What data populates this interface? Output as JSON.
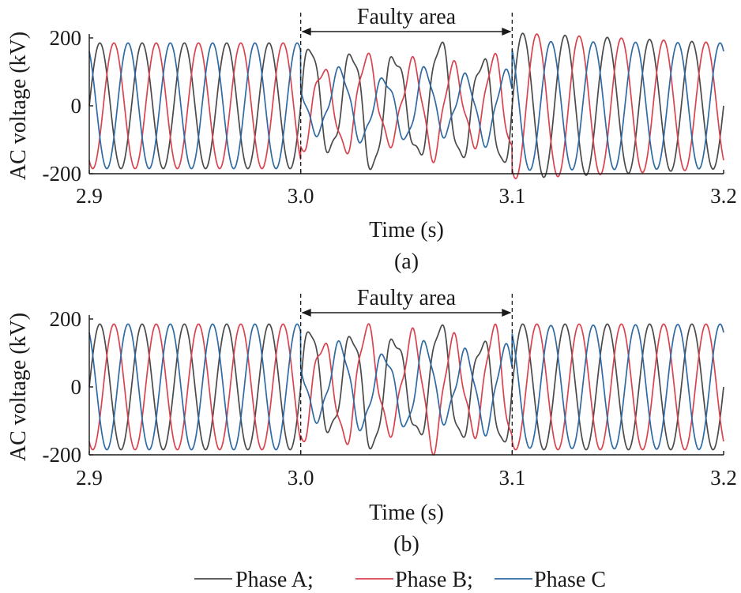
{
  "colors": {
    "phase_a": "#4a4a4a",
    "phase_b": "#d9434f",
    "phase_c": "#2f6aa3",
    "axis": "#1a1a1a"
  },
  "chart_data": [
    {
      "panel": "(a)",
      "type": "line",
      "xlabel": "Time (s)",
      "ylabel": "AC voltage (kV)",
      "xlim": [
        2.9,
        3.2
      ],
      "ylim": [
        -200,
        200
      ],
      "xticks": [
        "2.9",
        "3.0",
        "3.1",
        "3.2"
      ],
      "yticks": [
        "200",
        "0",
        "-200"
      ],
      "annotation": {
        "label": "Faulty area",
        "x_start": 3.0,
        "x_end": 3.1
      },
      "waveform": {
        "frequency_hz": 50,
        "pre_fault_amplitude": 185,
        "fault_amplitudes": {
          "Phase A": 190,
          "Phase B": 150,
          "Phase C": 110
        },
        "post_fault_amplitudes": {
          "Phase A": 215,
          "Phase B": 215,
          "Phase C": 190
        }
      },
      "series": [
        {
          "name": "Phase A",
          "phase_deg": 0
        },
        {
          "name": "Phase B",
          "phase_deg": -120
        },
        {
          "name": "Phase C",
          "phase_deg": 120
        }
      ]
    },
    {
      "panel": "(b)",
      "type": "line",
      "xlabel": "Time (s)",
      "ylabel": "AC voltage (kV)",
      "xlim": [
        2.9,
        3.2
      ],
      "ylim": [
        -200,
        200
      ],
      "xticks": [
        "2.9",
        "3.0",
        "3.1",
        "3.2"
      ],
      "yticks": [
        "200",
        "0",
        "-200"
      ],
      "annotation": {
        "label": "Faulty area",
        "x_start": 3.0,
        "x_end": 3.1
      },
      "waveform": {
        "frequency_hz": 50,
        "pre_fault_amplitude": 185,
        "fault_amplitudes": {
          "Phase A": 185,
          "Phase B": 180,
          "Phase C": 130
        },
        "post_fault_amplitudes": {
          "Phase A": 185,
          "Phase B": 185,
          "Phase C": 180
        }
      },
      "series": [
        {
          "name": "Phase A",
          "phase_deg": 0
        },
        {
          "name": "Phase B",
          "phase_deg": -120
        },
        {
          "name": "Phase C",
          "phase_deg": 120
        }
      ]
    }
  ],
  "legend": {
    "items": [
      "Phase A;",
      "Phase B;",
      "Phase C"
    ]
  }
}
